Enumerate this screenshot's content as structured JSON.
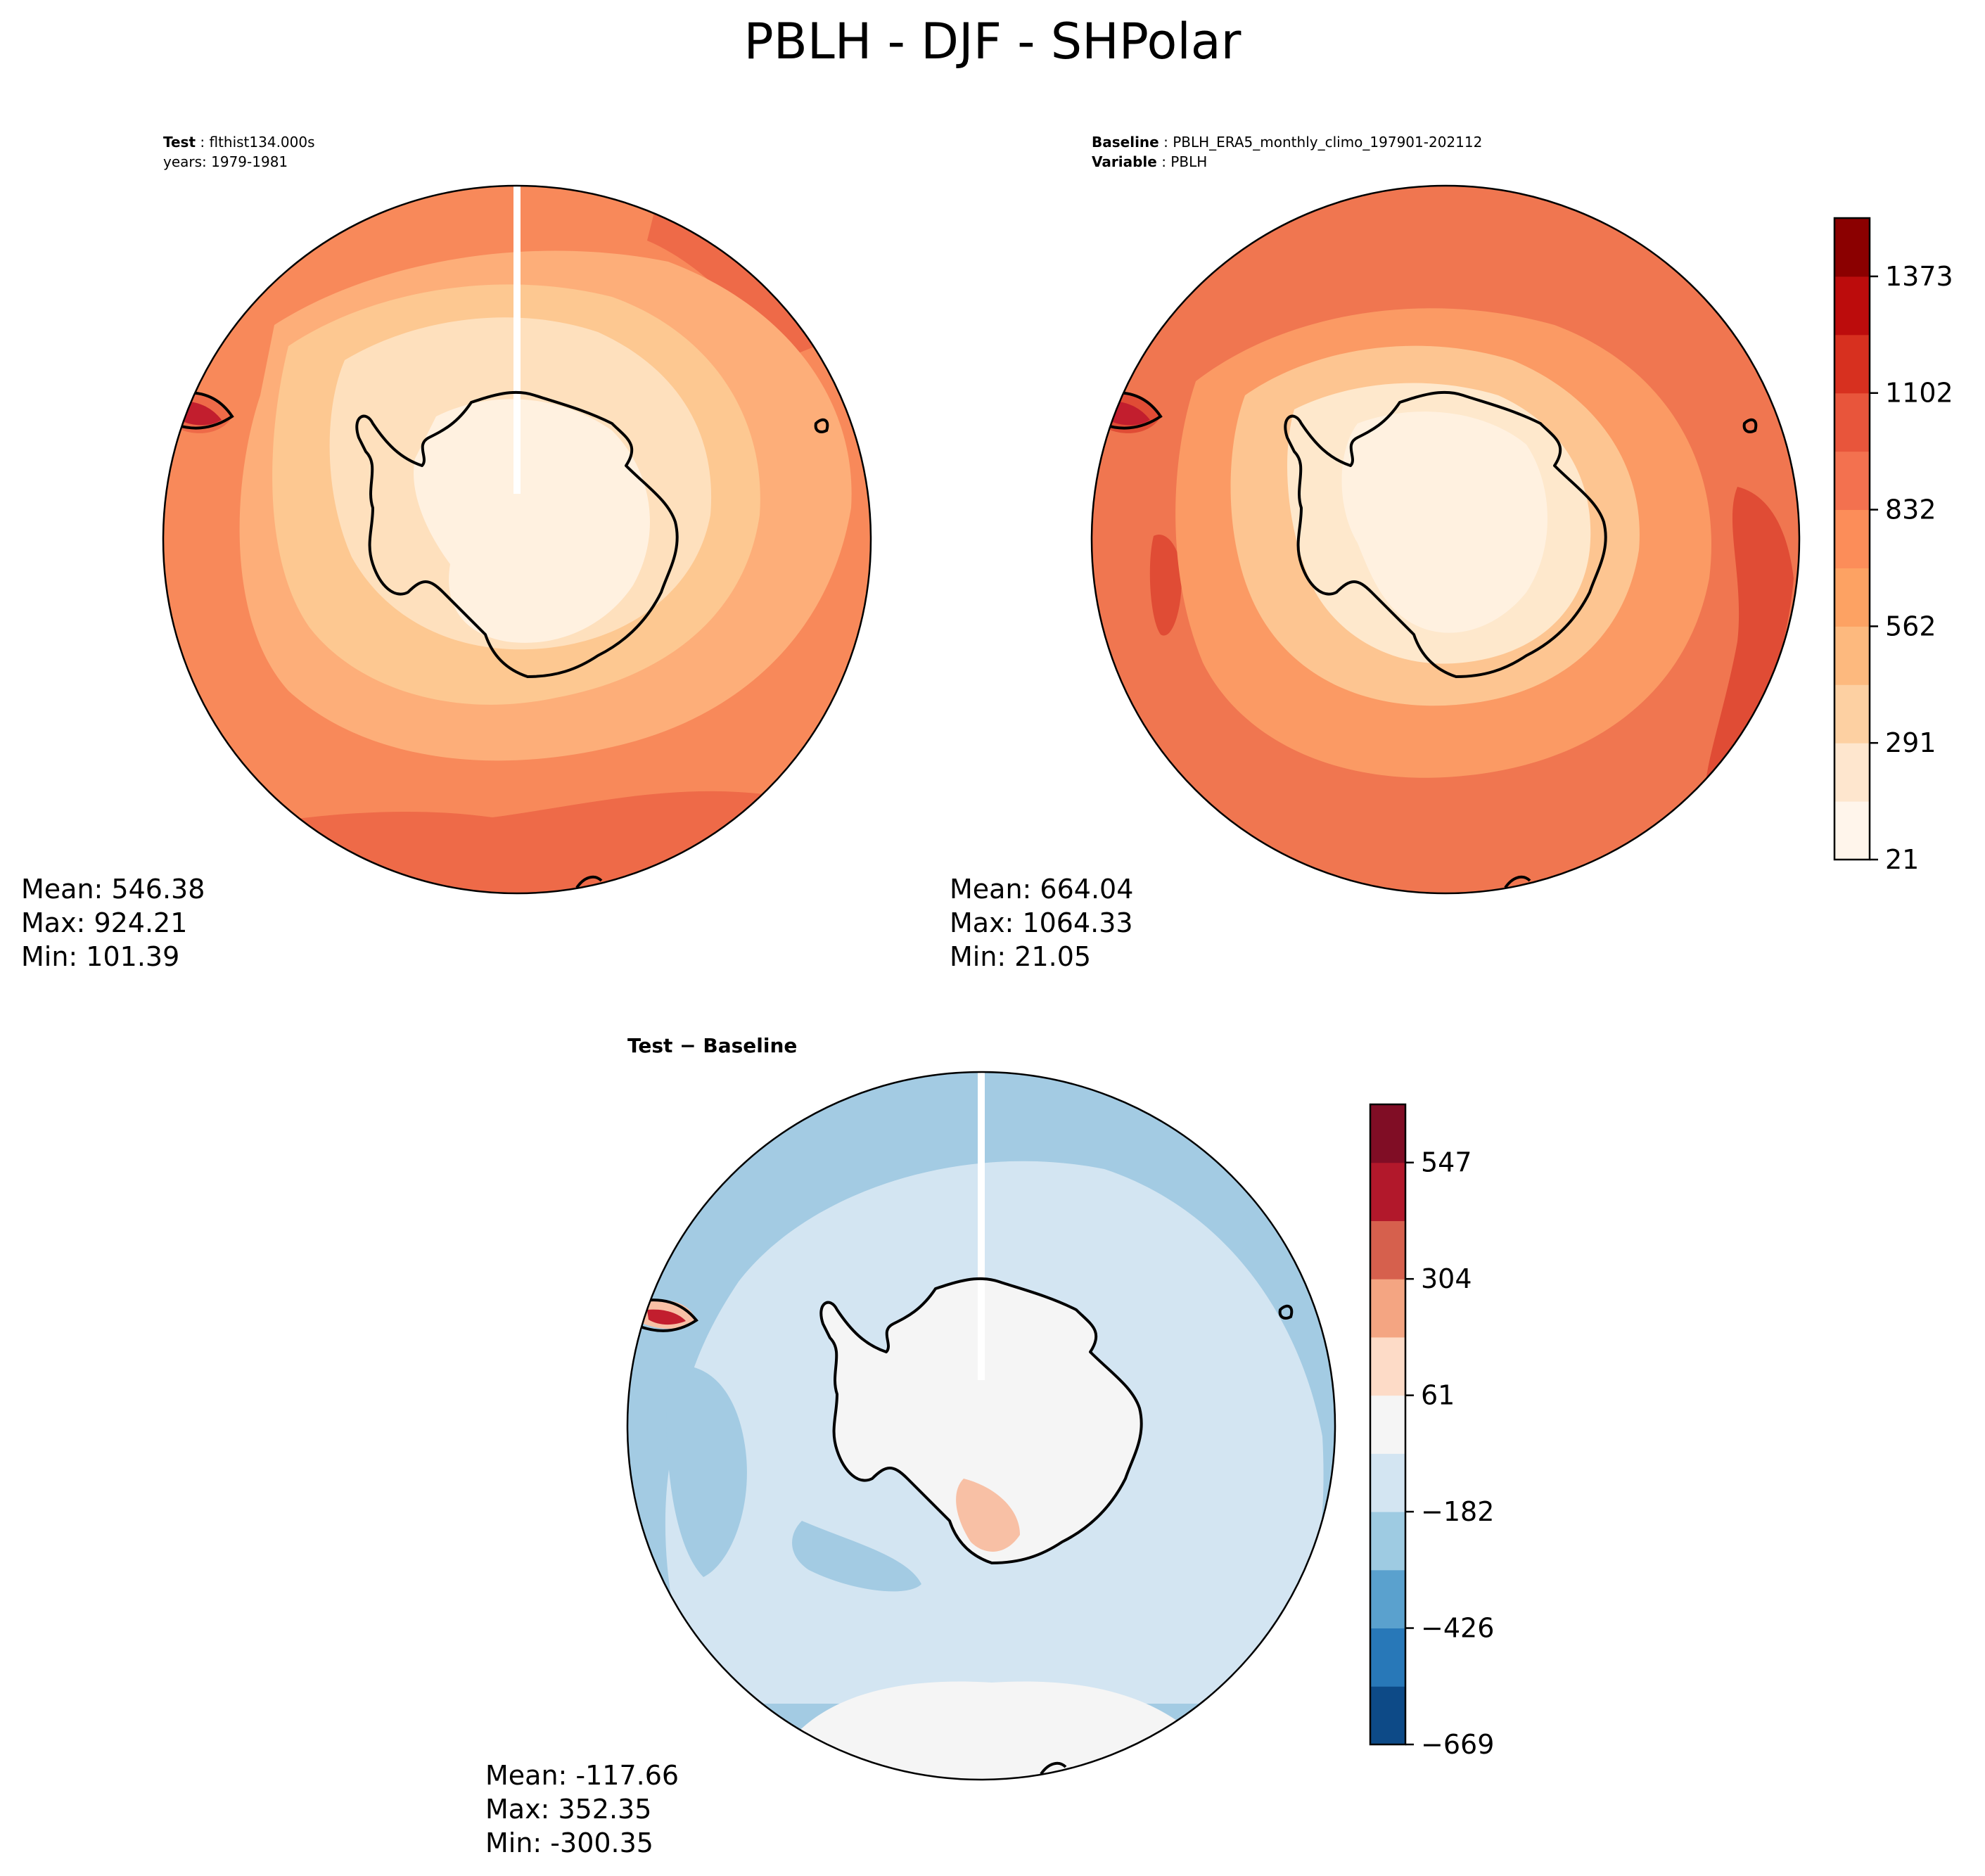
{
  "figure": {
    "title": "PBLH - DJF - SHPolar"
  },
  "panels": {
    "test": {
      "label_bold": "Test",
      "label_value": "flthist134.000s",
      "line2": "years: 1979-1981",
      "stats": {
        "mean": "Mean: 546.38",
        "max": "Max: 924.21",
        "min": "Min: 101.39"
      }
    },
    "baseline": {
      "label_bold": "Baseline",
      "label_value": "PBLH_ERA5_monthly_climo_197901-202112",
      "var_bold": "Variable",
      "var_value": "PBLH",
      "stats": {
        "mean": "Mean: 664.04",
        "max": "Max: 1064.33",
        "min": "Min: 21.05"
      }
    },
    "difference": {
      "title_a": "Test",
      "title_op": " − ",
      "title_b": "Baseline",
      "stats": {
        "mean": "Mean: -117.66",
        "max": "Max: 352.35",
        "min": "Min: -300.35"
      }
    }
  },
  "colorbars": {
    "main": {
      "colors": [
        "#fff5eb",
        "#fee6ce",
        "#fdd0a2",
        "#fdb97e",
        "#fda263",
        "#fc8d59",
        "#f3714f",
        "#e8553b",
        "#d7301f",
        "#bc0c0c",
        "#8b0000"
      ],
      "tick_labels": [
        "21",
        "291",
        "562",
        "832",
        "1102",
        "1373"
      ]
    },
    "diff": {
      "colors": [
        "#0d4a87",
        "#2878b8",
        "#5aa1ce",
        "#9ecbe2",
        "#d3e5f2",
        "#f5f5f5",
        "#fddbc7",
        "#f4a582",
        "#d6604d",
        "#b2182b",
        "#800d25"
      ],
      "tick_labels": [
        "−669",
        "−426",
        "−182",
        "61",
        "304",
        "547"
      ]
    }
  },
  "map_colors": {
    "t_l1": "#f8895a",
    "t_l2": "#fdae79",
    "t_l3": "#fdc891",
    "t_l4": "#fee0bd",
    "t_l5": "#fff1e0",
    "t_hi": "#ee6a48",
    "b_l1": "#f07650",
    "b_l2": "#fb9a64",
    "b_l3": "#fdc591",
    "b_l4": "#fee8cc",
    "b_hi": "#e04c35",
    "d_l1": "#a3cbe3",
    "d_l2": "#d3e5f2",
    "d_l3": "#f5f5f5",
    "d_pos": "#f8c0a5",
    "d_hot": "#c21e2e",
    "coast": "#000000"
  }
}
